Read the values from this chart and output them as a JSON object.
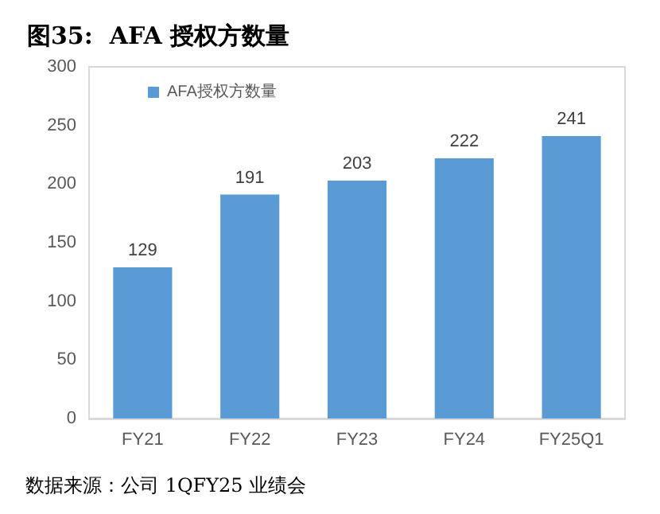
{
  "chart_data": {
    "type": "bar",
    "title": "图35:  AFA 授权方数量",
    "categories": [
      "FY21",
      "FY22",
      "FY23",
      "FY24",
      "FY25Q1"
    ],
    "series": [
      {
        "name": "AFA授权方数量",
        "color": "#5b9bd5",
        "values": [
          129,
          191,
          203,
          222,
          241
        ]
      }
    ],
    "ylim": [
      0,
      300
    ],
    "yticks": [
      0,
      50,
      100,
      150,
      200,
      250,
      300
    ],
    "data_labels": true,
    "legend": "top left",
    "grid": false,
    "annotations": [
      "数据来源：公司 1QFY25 业绩会"
    ]
  }
}
